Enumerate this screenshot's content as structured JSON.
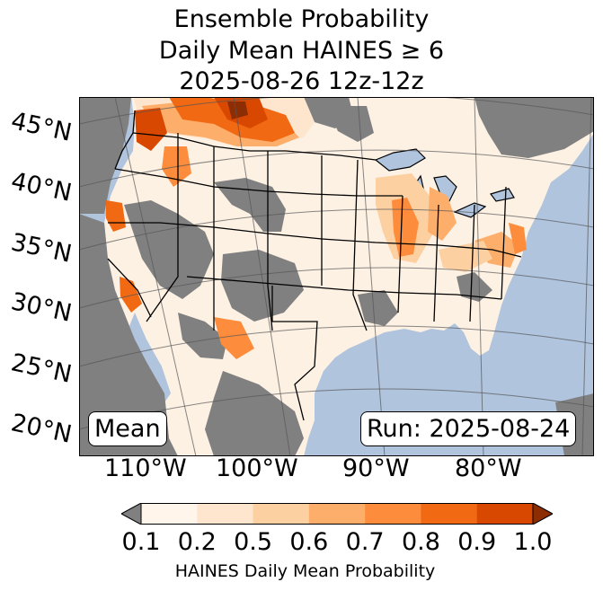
{
  "title": {
    "line1": "Ensemble Probability",
    "line2": "Daily Mean HAINES ≥ 6",
    "line3": "2025-08-26 12z-12z"
  },
  "map": {
    "ocean_color": "#b0c4de",
    "land_color": "#fdf1e4",
    "nodata_color": "#808080",
    "lat_labels": [
      "45°N",
      "40°N",
      "35°N",
      "30°N",
      "25°N",
      "20°N"
    ],
    "lon_labels": [
      "110°W",
      "100°W",
      "90°W",
      "80°W"
    ],
    "stat_label": "Mean",
    "run_label": "Run: 2025-08-24"
  },
  "colorbar": {
    "ticks": [
      "0.1",
      "0.2",
      "0.5",
      "0.6",
      "0.7",
      "0.8",
      "0.9",
      "1.0"
    ],
    "colors": [
      "#fff5eb",
      "#fee6ce",
      "#fdd0a2",
      "#fdae6b",
      "#fd8d3c",
      "#f16913",
      "#d94801"
    ],
    "under_color": "#808080",
    "over_color": "#8c2d04",
    "label": "HAINES Daily Mean Probability"
  }
}
